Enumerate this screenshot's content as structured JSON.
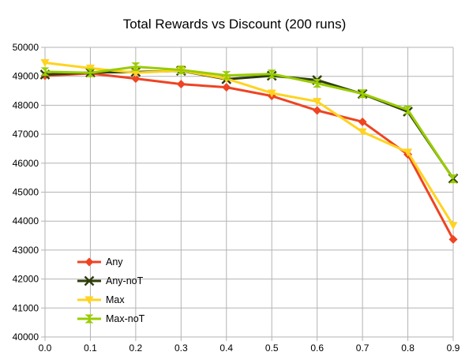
{
  "chart_data": {
    "type": "line",
    "title": "Total Rewards vs Discount (200 runs)",
    "xlabel": "",
    "ylabel": "",
    "x": [
      0.0,
      0.1,
      0.2,
      0.3,
      0.4,
      0.5,
      0.6,
      0.7,
      0.8,
      0.9
    ],
    "x_tick_labels": [
      "0.0",
      "0.1",
      "0.2",
      "0.3",
      "0.4",
      "0.5",
      "0.6",
      "0.7",
      "0.8",
      "0.9"
    ],
    "xlim": [
      0.0,
      0.9
    ],
    "ylim": [
      40000,
      50000
    ],
    "y_ticks": [
      40000,
      41000,
      42000,
      43000,
      44000,
      45000,
      46000,
      47000,
      48000,
      49000,
      50000
    ],
    "grid": true,
    "legend": "bottom-left inside plot",
    "series": [
      {
        "name": "Any",
        "color": "#ee4422",
        "marker": "diamond",
        "values": [
          49020,
          49100,
          48920,
          48730,
          48620,
          48320,
          47820,
          47430,
          46300,
          43370
        ]
      },
      {
        "name": "Any-noT",
        "color": "#2e3d0a",
        "marker": "x",
        "values": [
          49060,
          49130,
          49150,
          49190,
          48900,
          49020,
          48870,
          48390,
          47780,
          45470
        ]
      },
      {
        "name": "Max",
        "color": "#ffd320",
        "marker": "triangle-down",
        "values": [
          49470,
          49280,
          49120,
          49200,
          48920,
          48420,
          48130,
          47080,
          46380,
          43850
        ]
      },
      {
        "name": "Max-noT",
        "color": "#99cc00",
        "marker": "hourglass",
        "values": [
          49160,
          49120,
          49330,
          49220,
          49030,
          49080,
          48760,
          48400,
          47840,
          45460
        ]
      }
    ]
  }
}
